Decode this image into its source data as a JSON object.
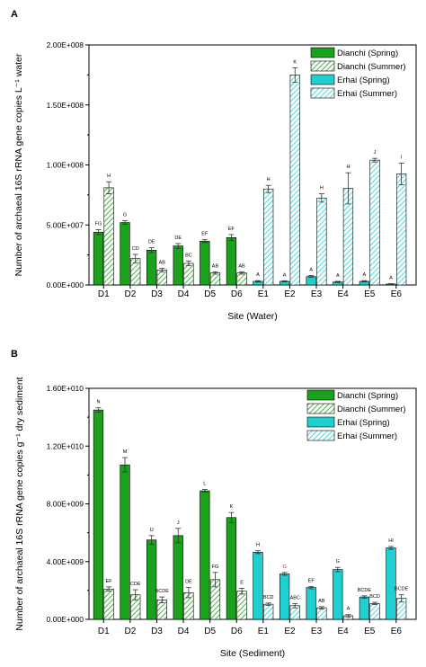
{
  "colors": {
    "dianchi": "#1ca11c",
    "erhai": "#20cfd0",
    "axis": "#000000",
    "label_red": "#d42020"
  },
  "chart_data": [
    {
      "panel": "A",
      "type": "bar",
      "categories": [
        "D1",
        "D2",
        "D3",
        "D4",
        "D5",
        "D6",
        "E1",
        "E2",
        "E3",
        "E4",
        "E5",
        "E6"
      ],
      "xlabel": "Site (Water)",
      "ylabel": "Number of archaeal 16S rRNA gene copies L⁻¹ water",
      "ylim": [
        0,
        200000000
      ],
      "yticks": [
        0,
        50000000,
        100000000,
        150000000,
        200000000
      ],
      "ytick_labels": [
        "0.00E+000",
        "5.00E+007",
        "1.00E+008",
        "1.50E+008",
        "2.00E+008"
      ],
      "legend_position": "top-right",
      "legend": [
        "Dianchi (Spring)",
        "Dianchi (Summer)",
        "Erhai (Spring)",
        "Erhai (Summer)"
      ],
      "series": [
        {
          "name": "Spring",
          "values": [
            44000000,
            52000000,
            29000000,
            32500000,
            36500000,
            39500000,
            3000000,
            3000000,
            7000000,
            2500000,
            3000000,
            800000
          ],
          "errors": [
            2000000,
            1500000,
            2000000,
            2000000,
            1200000,
            2500000,
            600000,
            500000,
            800000,
            500000,
            600000,
            300000
          ],
          "labels": [
            "FG",
            "G",
            "DE",
            "DE",
            "EF",
            "EF",
            "A",
            "A",
            "A",
            "A",
            "A",
            "A"
          ],
          "label_colors": [
            "#000",
            "#000",
            "#000",
            "#000",
            "#000",
            "#000",
            "#000",
            "#000",
            "#000",
            "#000",
            "#000",
            "#000"
          ]
        },
        {
          "name": "Summer",
          "values": [
            81000000,
            22000000,
            12500000,
            18000000,
            10000000,
            10000000,
            80000000,
            175000000,
            72500000,
            80500000,
            104000000,
            92500000
          ],
          "errors": [
            5000000,
            3500000,
            1500000,
            2000000,
            1000000,
            1000000,
            3000000,
            6000000,
            3500000,
            13000000,
            1500000,
            9000000
          ],
          "labels": [
            "H",
            "CD",
            "AB",
            "BC",
            "AB",
            "AB",
            "H",
            "K",
            "H",
            "H",
            "J",
            "I"
          ],
          "label_colors": [
            "#000",
            "#000",
            "#000",
            "#000",
            "#000",
            "#000",
            "#000",
            "#000",
            "#000",
            "#000",
            "#000",
            "#000"
          ]
        }
      ]
    },
    {
      "panel": "B",
      "type": "bar",
      "categories": [
        "D1",
        "D2",
        "D3",
        "D4",
        "D5",
        "D6",
        "E1",
        "E2",
        "E3",
        "E4",
        "E5",
        "E6"
      ],
      "xlabel": "Site (Sediment)",
      "ylabel": "Number of archaeal 16S rRNA gene copies g⁻¹ dry sediment",
      "ylim": [
        0,
        16000000000
      ],
      "yticks": [
        0,
        4000000000,
        8000000000,
        12000000000,
        16000000000
      ],
      "ytick_labels": [
        "0.00E+000",
        "4.00E+009",
        "8.00E+009",
        "1.20E+010",
        "1.60E+010"
      ],
      "legend_position": "top-right",
      "legend": [
        "Dianchi (Spring)",
        "Dianchi (Summer)",
        "Erhai (Spring)",
        "Erhai (Summer)"
      ],
      "series": [
        {
          "name": "Spring",
          "values": [
            14500000000,
            10700000000,
            5500000000,
            5800000000,
            8900000000,
            7050000000,
            4650000000,
            3150000000,
            2200000000,
            3450000000,
            1550000000,
            4950000000
          ],
          "errors": [
            150000000,
            500000000,
            300000000,
            500000000,
            100000000,
            350000000,
            100000000,
            100000000,
            80000000,
            150000000,
            80000000,
            100000000
          ],
          "labels": [
            "N",
            "M",
            "IJ",
            "J",
            "L",
            "K",
            "H",
            "G",
            "EF",
            "G",
            "BCDE",
            "HI"
          ],
          "label_colors": [
            "#000",
            "#000",
            "#000",
            "#000",
            "#000",
            "#000",
            "#000",
            "#d42020",
            "#000",
            "#000",
            "#000",
            "#000"
          ]
        },
        {
          "name": "Summer",
          "values": [
            2100000000,
            1700000000,
            1350000000,
            1850000000,
            2750000000,
            1950000000,
            1050000000,
            950000000,
            800000000,
            250000000,
            1100000000,
            1450000000
          ],
          "errors": [
            150000000,
            350000000,
            200000000,
            350000000,
            500000000,
            200000000,
            80000000,
            150000000,
            80000000,
            80000000,
            80000000,
            250000000
          ],
          "labels": [
            "EF",
            "CDE",
            "BCDE",
            "DE",
            "FG",
            "E",
            "BCD",
            "ABC",
            "AB",
            "A",
            "BCD",
            "BCDE"
          ],
          "label_colors": [
            "#000",
            "#000",
            "#000",
            "#000",
            "#000",
            "#000",
            "#000",
            "#000",
            "#000",
            "#000",
            "#000",
            "#000"
          ]
        }
      ]
    }
  ]
}
